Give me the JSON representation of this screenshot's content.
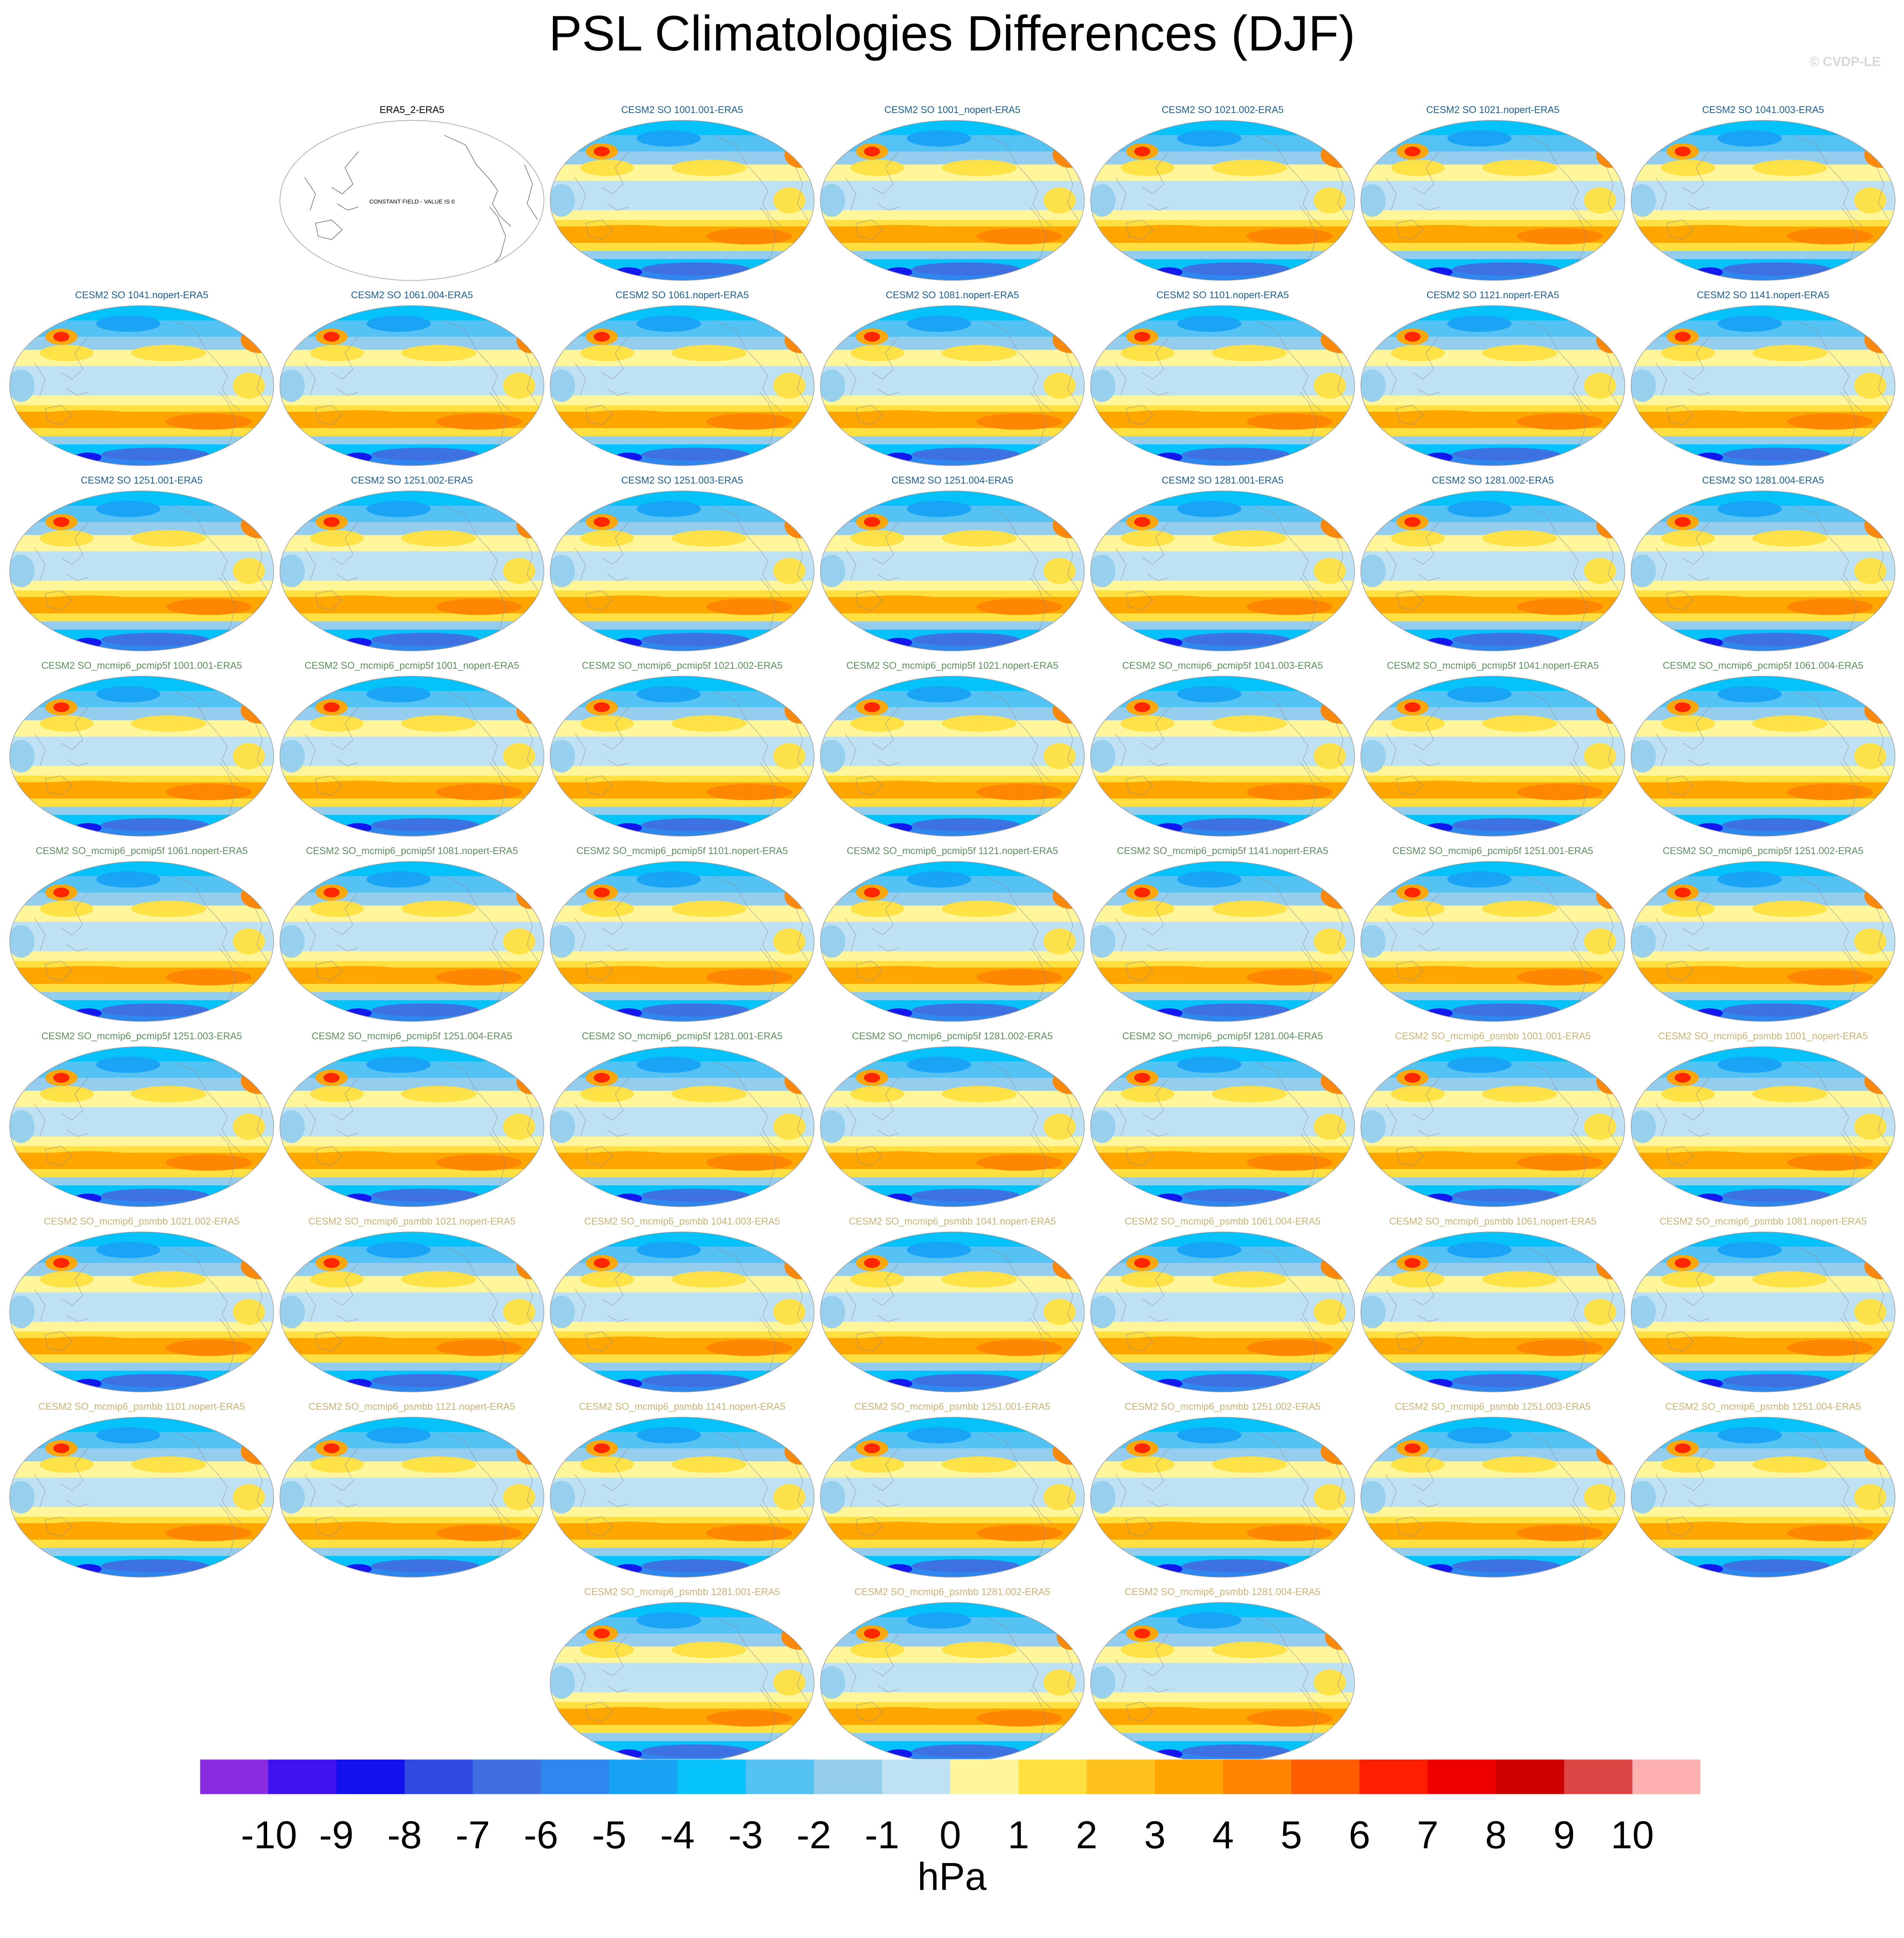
{
  "title": "PSL Climatologies Differences (DJF)",
  "watermark": "© CVDP-LE",
  "chart_data": {
    "type": "heatmap",
    "title": "PSL Climatologies Differences (DJF)",
    "projection": "robinson",
    "season": "DJF",
    "variable": "PSL",
    "units": "hPa",
    "colorbar": {
      "levels": [
        -10,
        -9,
        -8,
        -7,
        -6,
        -5,
        -4,
        -3,
        -2,
        -1,
        0,
        1,
        2,
        3,
        4,
        5,
        6,
        7,
        8,
        9,
        10
      ],
      "tick_labels": [
        "-10",
        "-9",
        "-8",
        "-7",
        "-6",
        "-5",
        "-4",
        "-3",
        "-2",
        "-1",
        "0",
        "1",
        "2",
        "3",
        "4",
        "5",
        "6",
        "7",
        "8",
        "9",
        "10"
      ],
      "colors": [
        "#8a2be2",
        "#3f12ee",
        "#1212ee",
        "#2f4ae0",
        "#3f6fe0",
        "#2f86ef",
        "#18a2f4",
        "#06c2fa",
        "#55c2f4",
        "#95cdee",
        "#bfe1f4",
        "#fff59a",
        "#ffe040",
        "#ffc11d",
        "#ffa500",
        "#ff8400",
        "#ff5c00",
        "#ff1f00",
        "#ee0000",
        "#cc0000",
        "#dd4444",
        "#ffb0b0"
      ]
    },
    "panels": [
      {
        "title": "ERA5_2-ERA5",
        "group": "ref",
        "constant": true,
        "note": "CONSTANT FIELD - VALUE IS 0"
      },
      {
        "title": "CESM2 SO 1001.001-ERA5",
        "group": "so"
      },
      {
        "title": "CESM2 SO 1001_nopert-ERA5",
        "group": "so"
      },
      {
        "title": "CESM2 SO 1021.002-ERA5",
        "group": "so"
      },
      {
        "title": "CESM2 SO 1021.nopert-ERA5",
        "group": "so"
      },
      {
        "title": "CESM2 SO 1041.003-ERA5",
        "group": "so"
      },
      {
        "title": "CESM2 SO 1041.nopert-ERA5",
        "group": "so"
      },
      {
        "title": "CESM2 SO 1061.004-ERA5",
        "group": "so"
      },
      {
        "title": "CESM2 SO 1061.nopert-ERA5",
        "group": "so"
      },
      {
        "title": "CESM2 SO 1081.nopert-ERA5",
        "group": "so"
      },
      {
        "title": "CESM2 SO 1101.nopert-ERA5",
        "group": "so"
      },
      {
        "title": "CESM2 SO 1121.nopert-ERA5",
        "group": "so"
      },
      {
        "title": "CESM2 SO 1141.nopert-ERA5",
        "group": "so"
      },
      {
        "title": "CESM2 SO 1251.001-ERA5",
        "group": "so"
      },
      {
        "title": "CESM2 SO 1251.002-ERA5",
        "group": "so"
      },
      {
        "title": "CESM2 SO 1251.003-ERA5",
        "group": "so"
      },
      {
        "title": "CESM2 SO 1251.004-ERA5",
        "group": "so"
      },
      {
        "title": "CESM2 SO 1281.001-ERA5",
        "group": "so"
      },
      {
        "title": "CESM2 SO 1281.002-ERA5",
        "group": "so"
      },
      {
        "title": "CESM2 SO 1281.004-ERA5",
        "group": "so"
      },
      {
        "title": "CESM2 SO_mcmip6_pcmip5f 1001.001-ERA5",
        "group": "pcmip"
      },
      {
        "title": "CESM2 SO_mcmip6_pcmip5f 1001_nopert-ERA5",
        "group": "pcmip"
      },
      {
        "title": "CESM2 SO_mcmip6_pcmip5f 1021.002-ERA5",
        "group": "pcmip"
      },
      {
        "title": "CESM2 SO_mcmip6_pcmip5f 1021.nopert-ERA5",
        "group": "pcmip"
      },
      {
        "title": "CESM2 SO_mcmip6_pcmip5f 1041.003-ERA5",
        "group": "pcmip"
      },
      {
        "title": "CESM2 SO_mcmip6_pcmip5f 1041.nopert-ERA5",
        "group": "pcmip"
      },
      {
        "title": "CESM2 SO_mcmip6_pcmip5f 1061.004-ERA5",
        "group": "pcmip"
      },
      {
        "title": "CESM2 SO_mcmip6_pcmip5f 1061.nopert-ERA5",
        "group": "pcmip"
      },
      {
        "title": "CESM2 SO_mcmip6_pcmip5f 1081.nopert-ERA5",
        "group": "pcmip"
      },
      {
        "title": "CESM2 SO_mcmip6_pcmip5f 1101.nopert-ERA5",
        "group": "pcmip"
      },
      {
        "title": "CESM2 SO_mcmip6_pcmip5f 1121.nopert-ERA5",
        "group": "pcmip"
      },
      {
        "title": "CESM2 SO_mcmip6_pcmip5f 1141.nopert-ERA5",
        "group": "pcmip"
      },
      {
        "title": "CESM2 SO_mcmip6_pcmip5f 1251.001-ERA5",
        "group": "pcmip"
      },
      {
        "title": "CESM2 SO_mcmip6_pcmip5f 1251.002-ERA5",
        "group": "pcmip"
      },
      {
        "title": "CESM2 SO_mcmip6_pcmip5f 1251.003-ERA5",
        "group": "pcmip"
      },
      {
        "title": "CESM2 SO_mcmip6_pcmip5f 1251.004-ERA5",
        "group": "pcmip"
      },
      {
        "title": "CESM2 SO_mcmip6_pcmip5f 1281.001-ERA5",
        "group": "pcmip"
      },
      {
        "title": "CESM2 SO_mcmip6_pcmip5f 1281.002-ERA5",
        "group": "pcmip"
      },
      {
        "title": "CESM2 SO_mcmip6_pcmip5f 1281.004-ERA5",
        "group": "pcmip"
      },
      {
        "title": "CESM2 SO_mcmip6_psmbb 1001.001-ERA5",
        "group": "psmbb"
      },
      {
        "title": "CESM2 SO_mcmip6_psmbb 1001_nopert-ERA5",
        "group": "psmbb"
      },
      {
        "title": "CESM2 SO_mcmip6_psmbb 1021.002-ERA5",
        "group": "psmbb"
      },
      {
        "title": "CESM2 SO_mcmip6_psmbb 1021.nopert-ERA5",
        "group": "psmbb"
      },
      {
        "title": "CESM2 SO_mcmip6_psmbb 1041.003-ERA5",
        "group": "psmbb"
      },
      {
        "title": "CESM2 SO_mcmip6_psmbb 1041.nopert-ERA5",
        "group": "psmbb"
      },
      {
        "title": "CESM2 SO_mcmip6_psmbb 1061.004-ERA5",
        "group": "psmbb"
      },
      {
        "title": "CESM2 SO_mcmip6_psmbb 1061.nopert-ERA5",
        "group": "psmbb"
      },
      {
        "title": "CESM2 SO_mcmip6_psmbb 1081.nopert-ERA5",
        "group": "psmbb"
      },
      {
        "title": "CESM2 SO_mcmip6_psmbb 1101.nopert-ERA5",
        "group": "psmbb"
      },
      {
        "title": "CESM2 SO_mcmip6_psmbb 1121.nopert-ERA5",
        "group": "psmbb"
      },
      {
        "title": "CESM2 SO_mcmip6_psmbb 1141.nopert-ERA5",
        "group": "psmbb"
      },
      {
        "title": "CESM2 SO_mcmip6_psmbb 1251.001-ERA5",
        "group": "psmbb"
      },
      {
        "title": "CESM2 SO_mcmip6_psmbb 1251.002-ERA5",
        "group": "psmbb"
      },
      {
        "title": "CESM2 SO_mcmip6_psmbb 1251.003-ERA5",
        "group": "psmbb"
      },
      {
        "title": "CESM2 SO_mcmip6_psmbb 1251.004-ERA5",
        "group": "psmbb"
      },
      {
        "title": "CESM2 SO_mcmip6_psmbb 1281.001-ERA5",
        "group": "psmbb"
      },
      {
        "title": "CESM2 SO_mcmip6_psmbb 1281.002-ERA5",
        "group": "psmbb"
      },
      {
        "title": "CESM2 SO_mcmip6_psmbb 1281.004-ERA5",
        "group": "psmbb"
      }
    ],
    "title_colors": {
      "ref": "#000000",
      "so": "#1f5f8f",
      "pcmip": "#5f8f5f",
      "psmbb": "#c8b478"
    }
  }
}
